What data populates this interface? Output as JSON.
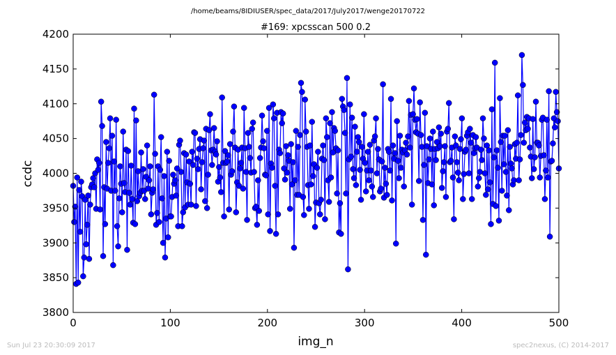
{
  "header": {
    "path": "/home/beams/8IDIUSER/spec_data/2017/July2017/wenge20170722"
  },
  "footer": {
    "timestamp": "Sun Jul 23 20:30:09 2017",
    "credit": "spec2nexus, (C) 2014-2017"
  },
  "chart_data": {
    "type": "line",
    "title": "#169: xpcsscan 500 0.2",
    "xlabel": "img_n",
    "ylabel": "ccdc",
    "xlim": [
      0,
      500
    ],
    "ylim": [
      3800,
      4200
    ],
    "xticks": [
      0,
      100,
      200,
      300,
      400,
      500
    ],
    "yticks": [
      3800,
      3850,
      3900,
      3950,
      4000,
      4050,
      4100,
      4150,
      4200
    ],
    "xtick_labels": [
      "0",
      "100",
      "200",
      "300",
      "400",
      "500"
    ],
    "ytick_labels": [
      "3800",
      "3850",
      "3900",
      "3950",
      "4000",
      "4050",
      "4100",
      "4150",
      "4200"
    ],
    "grid": false,
    "line_color": "#0000ff",
    "marker": "circle",
    "series": [
      {
        "values": [
          3982,
          3930,
          3952,
          3841,
          3994,
          3843,
          3976,
          3916,
          3988,
          3967,
          3852,
          3879,
          3962,
          3898,
          3926,
          3968,
          3877,
          3955,
          3980,
          3984,
          3993,
          3980,
          4000,
          3949,
          4020,
          4005,
          4015,
          3948,
          4103,
          4068,
          3881,
          3980,
          3927,
          4045,
          3978,
          4015,
          4036,
          4079,
          3975,
          4054,
          3868,
          4017,
          3975,
          4077,
          3924,
          3895,
          3964,
          4010,
          3985,
          3944,
          4060,
          3986,
          3973,
          4034,
          3890,
          4032,
          3972,
          3955,
          4011,
          3963,
          3929,
          4093,
          3927,
          4076,
          3960,
          4003,
          3967,
          3972,
          4030,
          3975,
          4006,
          3975,
          3963,
          3995,
          4040,
          3978,
          3990,
          4010,
          3941,
          3972,
          3977,
          4113,
          4028,
          3926,
          3943,
          4010,
          3930,
          4005,
          4052,
          3964,
          3900,
          3996,
          3879,
          3935,
          4031,
          3908,
          4018,
          3938,
          3938,
          3966,
          3998,
          3985,
          3990,
          3968,
          4007,
          3924,
          4041,
          4047,
          4002,
          3924,
          3944,
          4029,
          3951,
          4027,
          3987,
          3955,
          4017,
          3985,
          3955,
          4031,
          4012,
          4059,
          4058,
          3953,
          4021,
          4006,
          4035,
          4049,
          3977,
          4016,
          4036,
          4047,
          3960,
          4064,
          3950,
          3998,
          4062,
          4085,
          4033,
          4012,
          4034,
          4065,
          4031,
          4027,
          4046,
          3988,
          4009,
          3994,
          3973,
          4109,
          4015,
          3938,
          4032,
          4015,
          4017,
          4026,
          3948,
          4042,
          3998,
          4003,
          4060,
          4096,
          4037,
          3944,
          3987,
          4034,
          3982,
          4007,
          4015,
          4037,
          3978,
          4094,
          4036,
          4002,
          3933,
          4058,
          4038,
          4022,
          4001,
          4064,
          4073,
          4002,
          3950,
          3952,
          3926,
          3990,
          3946,
          4022,
          4037,
          4083,
          4046,
          4036,
          3998,
          3997,
          4061,
          3941,
          4094,
          3917,
          4014,
          4008,
          4099,
          4079,
          3982,
          3913,
          4087,
          3941,
          4034,
          4029,
          4088,
          4072,
          4086,
          4007,
          3991,
          4039,
          4001,
          4026,
          4018,
          3949,
          4042,
          3984,
          4016,
          3893,
          3990,
          4061,
          3969,
          4038,
          3969,
          4055,
          4130,
          4117,
          3966,
          3940,
          4106,
          4060,
          4038,
          3983,
          3949,
          4040,
          3984,
          4074,
          3996,
          4013,
          3923,
          3958,
          4008,
          4031,
          3957,
          3941,
          3962,
          4021,
          4040,
          4019,
          3934,
          4079,
          4052,
          3990,
          3959,
          4072,
          3994,
          4088,
          4030,
          4065,
          4061,
          4036,
          3971,
          4033,
          3915,
          3957,
          3913,
          4107,
          4096,
          4091,
          4058,
          3971,
          4137,
          3862,
          4020,
          4099,
          4024,
          4080,
          4006,
          3993,
          4067,
          3983,
          4031,
          4052,
          4045,
          4005,
          3962,
          4038,
          4021,
          4085,
          4015,
          3974,
          4004,
          4031,
          3990,
          4041,
          4004,
          3981,
          3966,
          4047,
          4053,
          4079,
          4000,
          4035,
          4020,
          3974,
          3978,
          4017,
          4128,
          3965,
          4008,
          3985,
          3969,
          4035,
          4031,
          4004,
          4107,
          3961,
          4040,
          4021,
          4029,
          3899,
          4075,
          4018,
          3993,
          4054,
          4008,
          4034,
          4030,
          3981,
          4033,
          4044,
          4027,
          4053,
          4104,
          4037,
          4084,
          3955,
          4085,
          4122,
          4077,
          4059,
          4078,
          4057,
          3989,
          4102,
          4055,
          4038,
          3933,
          4012,
          4087,
          3883,
          4039,
          3986,
          4020,
          4050,
          4035,
          3984,
          4060,
          3954,
          4035,
          4019,
          4045,
          4036,
          4066,
          4039,
          4057,
          3979,
          4003,
          4016,
          4039,
          3966,
          4060,
          4064,
          4101,
          4016,
          4018,
          4037,
          3994,
          3934,
          4053,
          4040,
          4016,
          4001,
          3990,
          4035,
          4049,
          4079,
          3963,
          3999,
          4031,
          4034,
          4054,
          4059,
          4000,
          4064,
          4044,
          3963,
          4055,
          4029,
          4036,
          4052,
          4037,
          3981,
          3993,
          4002,
          4034,
          4019,
          4079,
          4050,
          4000,
          3969,
          4040,
          3977,
          4033,
          3987,
          3927,
          4092,
          3956,
          4023,
          4159,
          3953,
          4033,
          4008,
          3932,
          4108,
          4045,
          3975,
          4054,
          4013,
          4054,
          4002,
          3968,
          4062,
          3947,
          4038,
          4014,
          4007,
          3984,
          3990,
          4042,
          4021,
          4044,
          4112,
          3990,
          4020,
          4055,
          4170,
          4127,
          4044,
          4073,
          4062,
          4081,
          4064,
          4079,
          4037,
          4024,
          3993,
          4078,
          4006,
          4023,
          4103,
          4044,
          4044,
          4040,
          3994,
          4025,
          4077,
          4080,
          4026,
          3963,
          4004,
          4077,
          3994,
          4118,
          3909,
          4017,
          4018,
          4043,
          4079,
          4066,
          4117,
          4088,
          4075,
          4007
        ]
      }
    ]
  }
}
